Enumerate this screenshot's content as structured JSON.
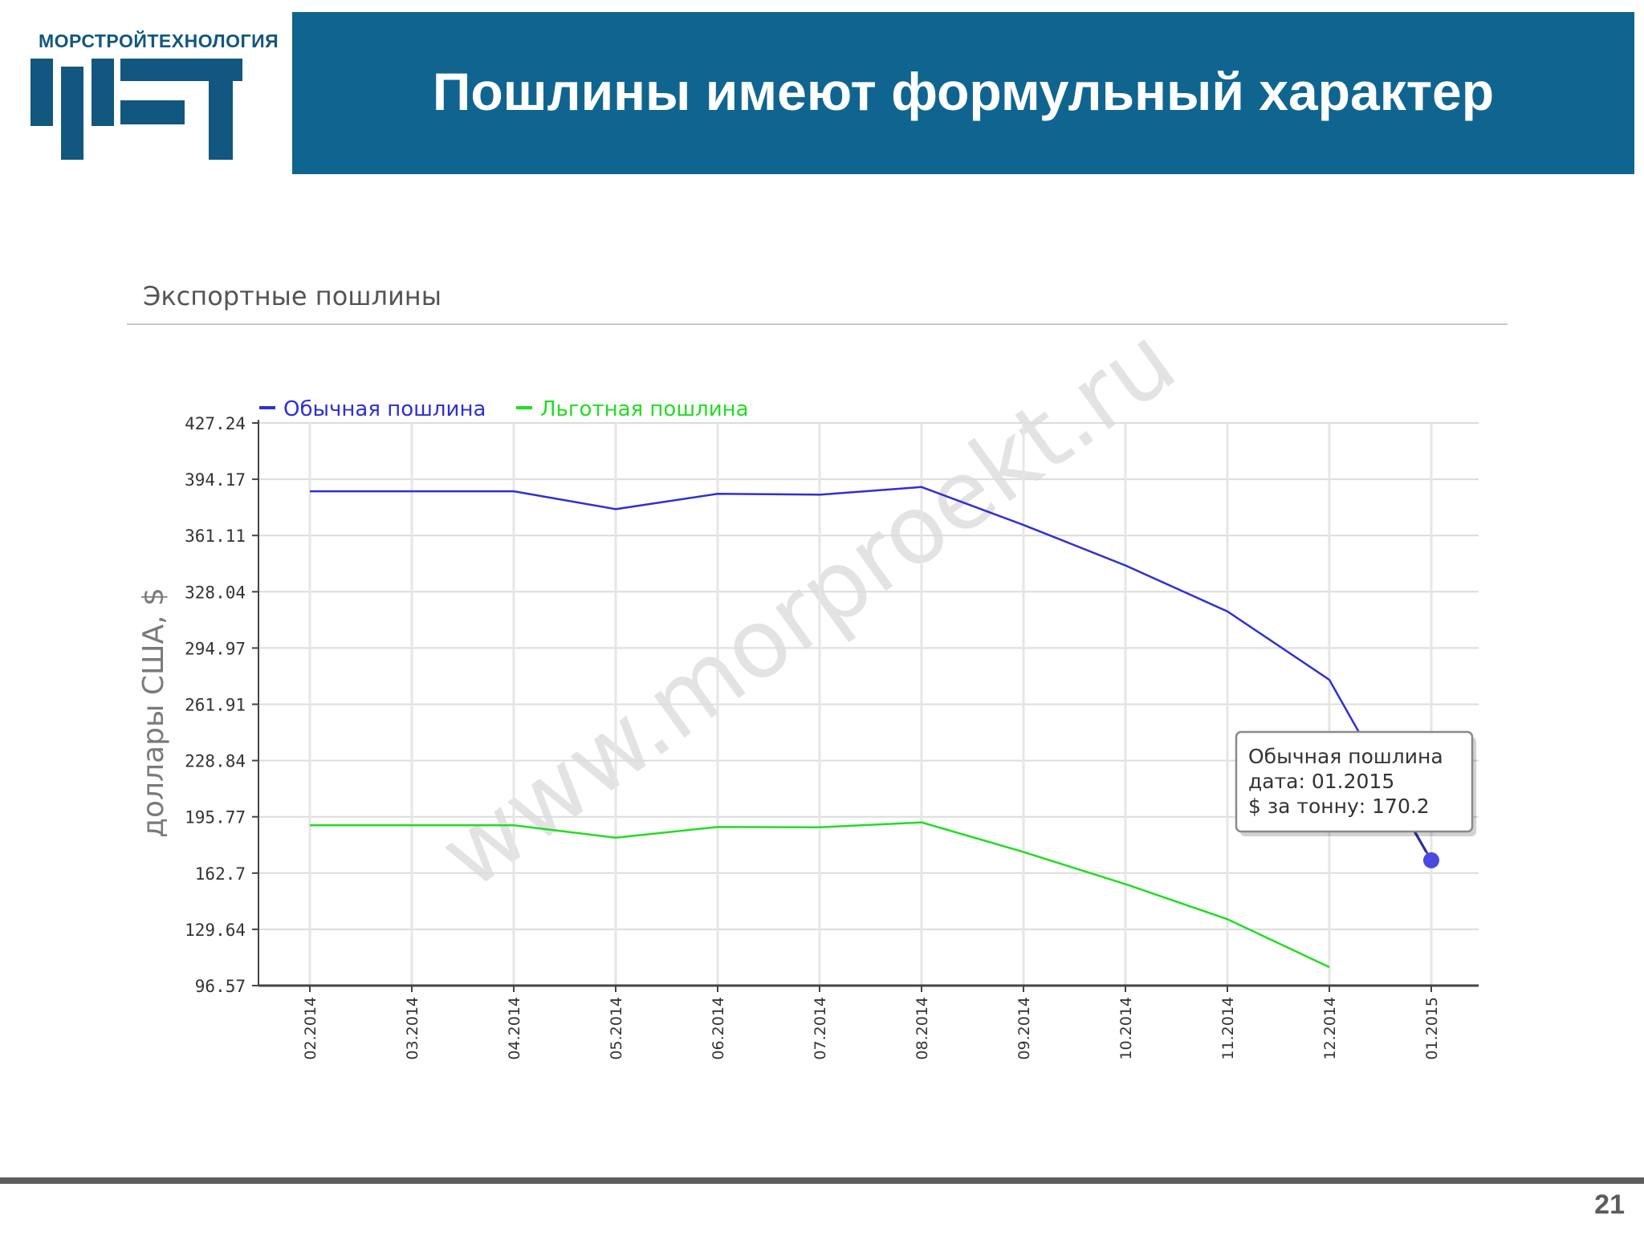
{
  "logo": {
    "company_name": "МОРСТРОЙТЕХНОЛОГИЯ",
    "mark_letters": "МСТ"
  },
  "slide": {
    "title": "Пошлины имеют формульный характер",
    "page_number": "21"
  },
  "watermark": "www.morproekt.ru",
  "colors": {
    "title_bar": "#0f6590",
    "logo": "#12577f",
    "series_regular": "#2f2fd6",
    "series_preferential": "#22dd22"
  },
  "chart_data": {
    "type": "line",
    "title": "Экспортные пошлины",
    "ylabel": "доллары США, $",
    "xlabel": "",
    "x": [
      "02.2014",
      "03.2014",
      "04.2014",
      "05.2014",
      "06.2014",
      "07.2014",
      "08.2014",
      "09.2014",
      "10.2014",
      "11.2014",
      "12.2014",
      "01.2015"
    ],
    "y_ticks": [
      "427.24",
      "394.17",
      "361.11",
      "328.04",
      "294.97",
      "261.91",
      "228.84",
      "195.77",
      "162.7",
      "129.64",
      "96.57"
    ],
    "ylim": [
      96.57,
      427.24
    ],
    "grid": true,
    "legend_position": "top-left",
    "series": [
      {
        "name": "Обычная пошлина",
        "color": "#2f2fd6",
        "values": [
          387.1,
          387.1,
          387.1,
          376.6,
          385.6,
          385.1,
          389.6,
          367.3,
          343.5,
          316.5,
          276.3,
          170.2
        ]
      },
      {
        "name": "Льготная пошлина",
        "color": "#22dd22",
        "values": [
          190.8,
          190.8,
          190.8,
          183.5,
          189.8,
          189.6,
          192.5,
          175.1,
          156.2,
          135.6,
          107.4,
          null
        ]
      }
    ],
    "tooltip": {
      "series_name": "Обычная пошлина",
      "date_label": "дата: 01.2015",
      "value_label": "$ за тонну: 170.2"
    }
  }
}
